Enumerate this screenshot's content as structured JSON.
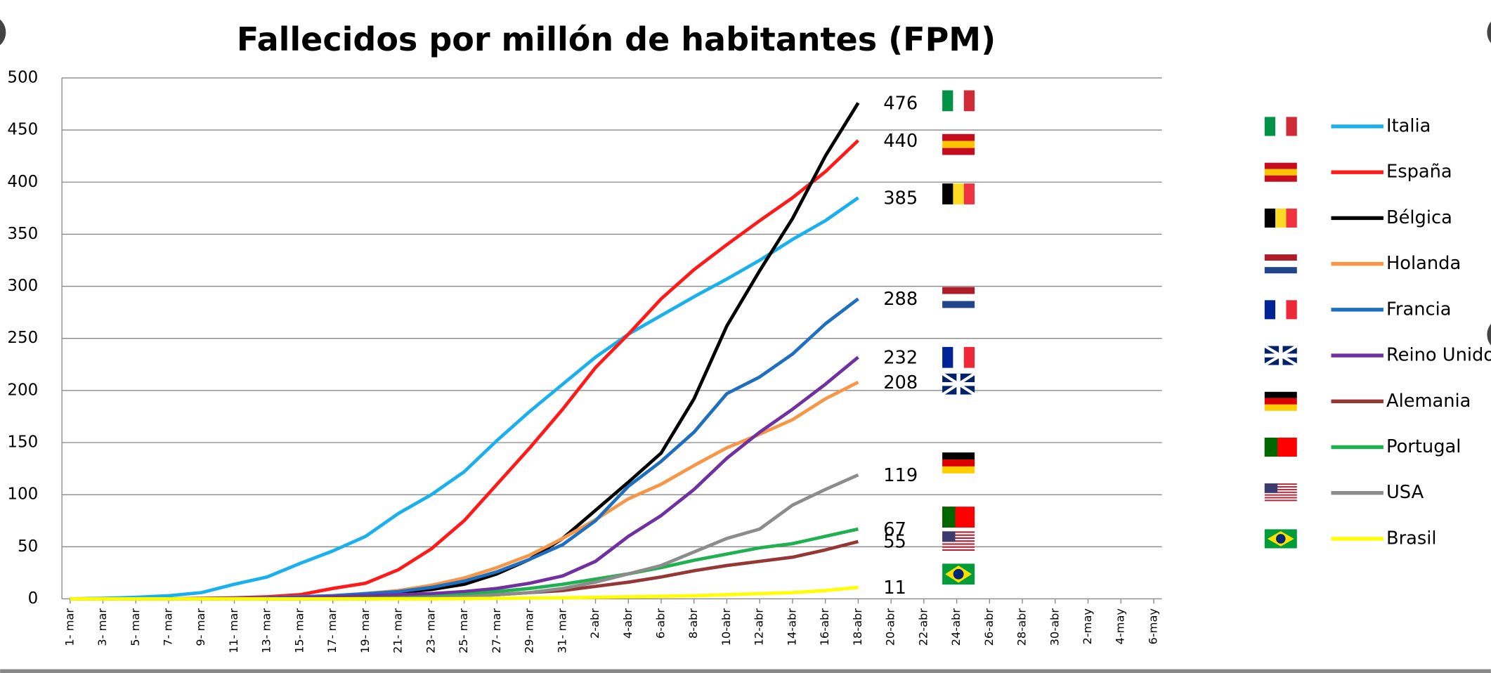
{
  "chart_data": {
    "type": "line",
    "title": "Fallecidos por millón de habitantes (FPM)",
    "categories": [
      "1- mar",
      "3- mar",
      "5- mar",
      "7- mar",
      "9- mar",
      "11- mar",
      "13- mar",
      "15- mar",
      "17- mar",
      "19- mar",
      "21- mar",
      "23- mar",
      "25- mar",
      "27- mar",
      "29- mar",
      "31- mar",
      "2-abr",
      "4-abr",
      "6-abr",
      "8-abr",
      "10-abr",
      "12-abr",
      "14-abr",
      "16-abr",
      "18-abr",
      "20-abr",
      "22-abr",
      "24-abr",
      "26-abr",
      "28-abr",
      "30-abr",
      "2-may",
      "4-may",
      "6-may"
    ],
    "ylim": [
      0,
      500
    ],
    "yticks": [
      0,
      50,
      100,
      150,
      200,
      250,
      300,
      350,
      400,
      450,
      500
    ],
    "grid": true,
    "series": [
      {
        "name": "Italia",
        "color": "#1ab0ee",
        "values": [
          0,
          0.5,
          1.5,
          3,
          6,
          14,
          21,
          34,
          46,
          60,
          82,
          100,
          122,
          152,
          180,
          206,
          232,
          254,
          272,
          290,
          307,
          325,
          345,
          363,
          385,
          null,
          null,
          null,
          null,
          null,
          null,
          null,
          null,
          null
        ]
      },
      {
        "name": "España",
        "color": "#ff1a1a",
        "values": [
          0,
          0,
          0,
          0,
          0.5,
          1,
          2,
          4,
          10,
          15,
          28,
          48,
          75,
          110,
          145,
          182,
          222,
          254,
          288,
          316,
          340,
          363,
          385,
          410,
          440,
          null,
          null,
          null,
          null,
          null,
          null,
          null,
          null,
          null
        ]
      },
      {
        "name": "Bélgica",
        "color": "#000000",
        "values": [
          0,
          0,
          0,
          0,
          0,
          0,
          0.5,
          1,
          2,
          4,
          6,
          9,
          14,
          24,
          38,
          58,
          85,
          112,
          140,
          192,
          262,
          315,
          365,
          425,
          476,
          null,
          null,
          null,
          null,
          null,
          null,
          null,
          null,
          null
        ]
      },
      {
        "name": "Holanda",
        "color": "#f79646",
        "values": [
          0,
          0,
          0,
          0,
          0,
          0.5,
          1,
          2,
          3,
          5,
          8,
          13,
          20,
          30,
          42,
          58,
          76,
          96,
          110,
          128,
          145,
          158,
          172,
          192,
          208,
          null,
          null,
          null,
          null,
          null,
          null,
          null,
          null,
          null
        ]
      },
      {
        "name": "Francia",
        "color": "#1f6fc0",
        "values": [
          0,
          0,
          0,
          0,
          0,
          0.5,
          1,
          2,
          3,
          5,
          7,
          11,
          17,
          26,
          38,
          52,
          75,
          108,
          132,
          160,
          197,
          213,
          235,
          264,
          288,
          null,
          null,
          null,
          null,
          null,
          null,
          null,
          null,
          null
        ]
      },
      {
        "name": "Reino Unido",
        "color": "#7030a0",
        "values": [
          0,
          0,
          0,
          0,
          0,
          0,
          0.5,
          1,
          2,
          3,
          4,
          5,
          7,
          10,
          15,
          22,
          36,
          60,
          80,
          105,
          135,
          160,
          182,
          206,
          232,
          null,
          null,
          null,
          null,
          null,
          null,
          null,
          null,
          null
        ]
      },
      {
        "name": "Alemania",
        "color": "#953735",
        "values": [
          0,
          0,
          0,
          0,
          0,
          0,
          0,
          0,
          0.5,
          1,
          1.5,
          2,
          3,
          4,
          6,
          8,
          12,
          16,
          21,
          27,
          32,
          36,
          40,
          47,
          55,
          null,
          null,
          null,
          null,
          null,
          null,
          null,
          null,
          null
        ]
      },
      {
        "name": "Portugal",
        "color": "#1fb050",
        "values": [
          0,
          0,
          0,
          0,
          0,
          0,
          0,
          0,
          0,
          0.5,
          1,
          2,
          4,
          7,
          10,
          14,
          19,
          24,
          30,
          37,
          43,
          49,
          53,
          60,
          67,
          null,
          null,
          null,
          null,
          null,
          null,
          null,
          null,
          null
        ]
      },
      {
        "name": "USA",
        "color": "#8c8c8c",
        "values": [
          0,
          0,
          0,
          0,
          0,
          0,
          0,
          0,
          0,
          0,
          0.5,
          1,
          2,
          4,
          6,
          10,
          16,
          24,
          32,
          45,
          58,
          67,
          90,
          105,
          119,
          null,
          null,
          null,
          null,
          null,
          null,
          null,
          null,
          null
        ]
      },
      {
        "name": "Brasil",
        "color": "#ffff00",
        "values": [
          0,
          0,
          0,
          0,
          0,
          0,
          0,
          0,
          0,
          0,
          0,
          0,
          0.2,
          0.5,
          0.8,
          1,
          1.5,
          2,
          2.5,
          3,
          4,
          5,
          6,
          8,
          11,
          null,
          null,
          null,
          null,
          null,
          null,
          null,
          null,
          null
        ]
      }
    ]
  }
}
